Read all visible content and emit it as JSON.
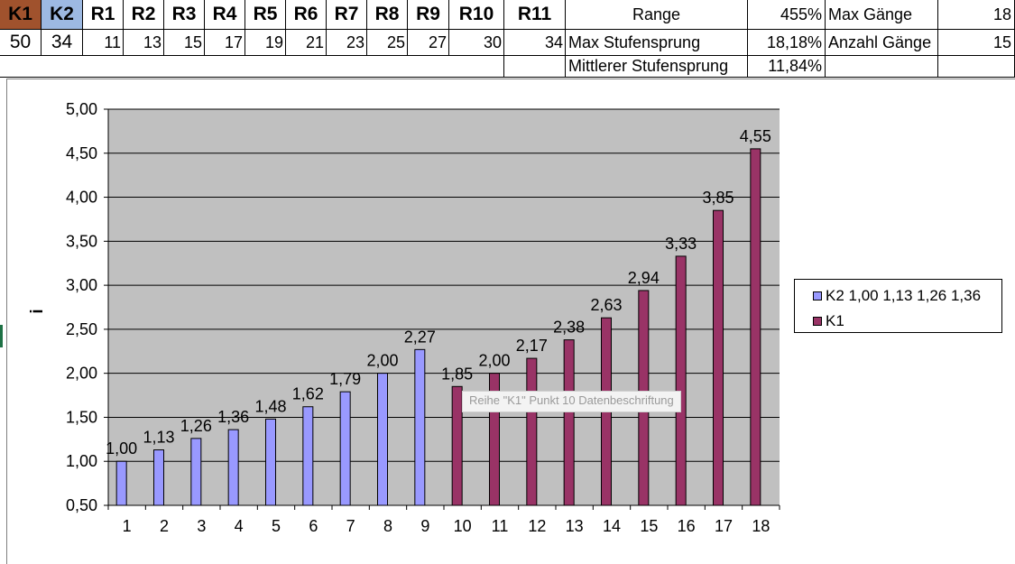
{
  "sheet": {
    "headers": [
      "K1",
      "K2",
      "R1",
      "R2",
      "R3",
      "R4",
      "R5",
      "R6",
      "R7",
      "R8",
      "R9",
      "R10",
      "R11"
    ],
    "values": [
      "50",
      "34",
      "11",
      "13",
      "15",
      "17",
      "19",
      "21",
      "23",
      "25",
      "27",
      "30",
      "34"
    ],
    "stats": {
      "range_label": "Range",
      "range_value": "455%",
      "max_gears_label": "Max Gänge",
      "max_gears_value": "18",
      "max_step_label": "Max Stufensprung",
      "max_step_value": "18,18%",
      "gear_count_label": "Anzahl Gänge",
      "gear_count_value": "15",
      "avg_step_label": "Mittlerer Stufensprung",
      "avg_step_value": "11,84%"
    }
  },
  "chart_data": {
    "type": "bar",
    "title": "",
    "xlabel": "",
    "ylabel": "i",
    "ylim": [
      0.5,
      5.0
    ],
    "y_ticks": [
      "0,50",
      "1,00",
      "1,50",
      "2,00",
      "2,50",
      "3,00",
      "3,50",
      "4,00",
      "4,50",
      "5,00"
    ],
    "categories": [
      "1",
      "2",
      "3",
      "4",
      "5",
      "6",
      "7",
      "8",
      "9",
      "10",
      "11",
      "12",
      "13",
      "14",
      "15",
      "16",
      "17",
      "18"
    ],
    "series": [
      {
        "name": "K2 1,00 1,13 1,26 1,36",
        "color": "#9999ff",
        "values": [
          1.0,
          1.13,
          1.26,
          1.36,
          1.48,
          1.62,
          1.79,
          2.0,
          2.27,
          null,
          null,
          null,
          null,
          null,
          null,
          null,
          null,
          null
        ],
        "labels": [
          "1,00",
          "1,13",
          "1,26",
          "1,36",
          "1,48",
          "1,62",
          "1,79",
          "2,00",
          "2,27",
          "",
          "",
          "",
          "",
          "",
          "",
          "",
          "",
          ""
        ]
      },
      {
        "name": "K1",
        "color": "#993366",
        "values": [
          null,
          null,
          null,
          null,
          null,
          null,
          null,
          null,
          null,
          1.85,
          2.0,
          2.17,
          2.38,
          2.63,
          2.94,
          3.33,
          3.85,
          4.55
        ],
        "labels": [
          "",
          "",
          "",
          "",
          "",
          "",
          "",
          "",
          "",
          "1,85",
          "2,00",
          "2,17",
          "2,38",
          "2,63",
          "2,94",
          "3,33",
          "3,85",
          "4,55"
        ]
      }
    ],
    "plot_background": "#c0c0c0",
    "grid": true,
    "legend_position": "right",
    "tooltip": "Reihe \"K1\" Punkt 10 Datenbeschriftung"
  }
}
